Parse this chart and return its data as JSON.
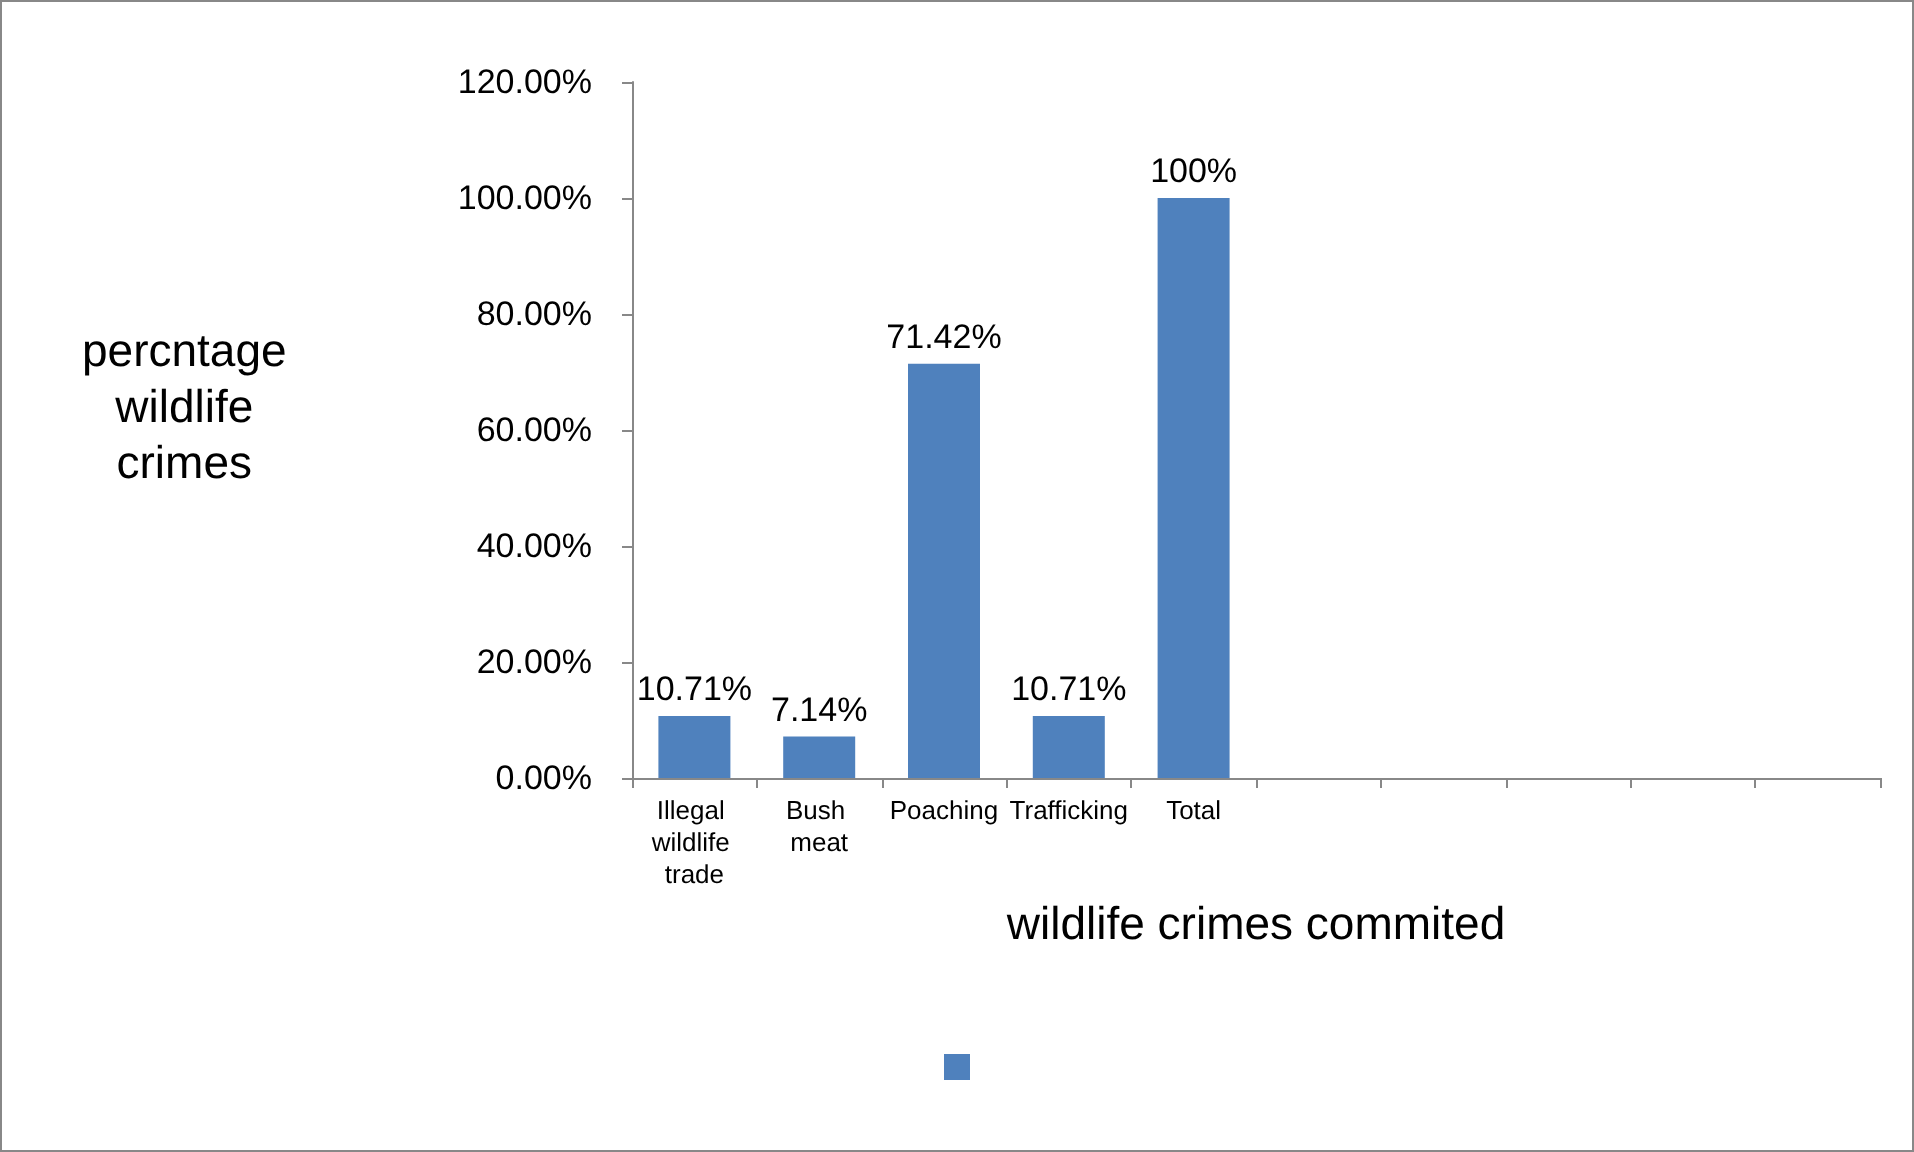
{
  "chart_data": {
    "type": "bar",
    "xlabel": "wildlife crimes commited",
    "ylabel": "percntage wildlife crimes",
    "categories": [
      "Illegal wildlife trade",
      "Bush meat",
      "Poaching",
      "Trafficking",
      "Total",
      null,
      null,
      null,
      null,
      null
    ],
    "values": [
      10.71,
      7.14,
      71.42,
      10.71,
      100,
      null,
      null,
      null,
      null,
      null
    ],
    "value_labels": [
      "10.71%",
      "7.14%",
      "71.42%",
      "10.71%",
      "100%",
      null,
      null,
      null,
      null,
      null
    ],
    "color": "#4f81bd",
    "ylim": [
      0,
      120
    ],
    "yticks": [
      {
        "value": 0,
        "label": "0.00%"
      },
      {
        "value": 20,
        "label": "20.00%"
      },
      {
        "value": 40,
        "label": "40.00%"
      },
      {
        "value": 60,
        "label": "60.00%"
      },
      {
        "value": 80,
        "label": "80.00%"
      },
      {
        "value": 100,
        "label": "100.00%"
      },
      {
        "value": 120,
        "label": "120.00%"
      }
    ],
    "grid": false
  }
}
